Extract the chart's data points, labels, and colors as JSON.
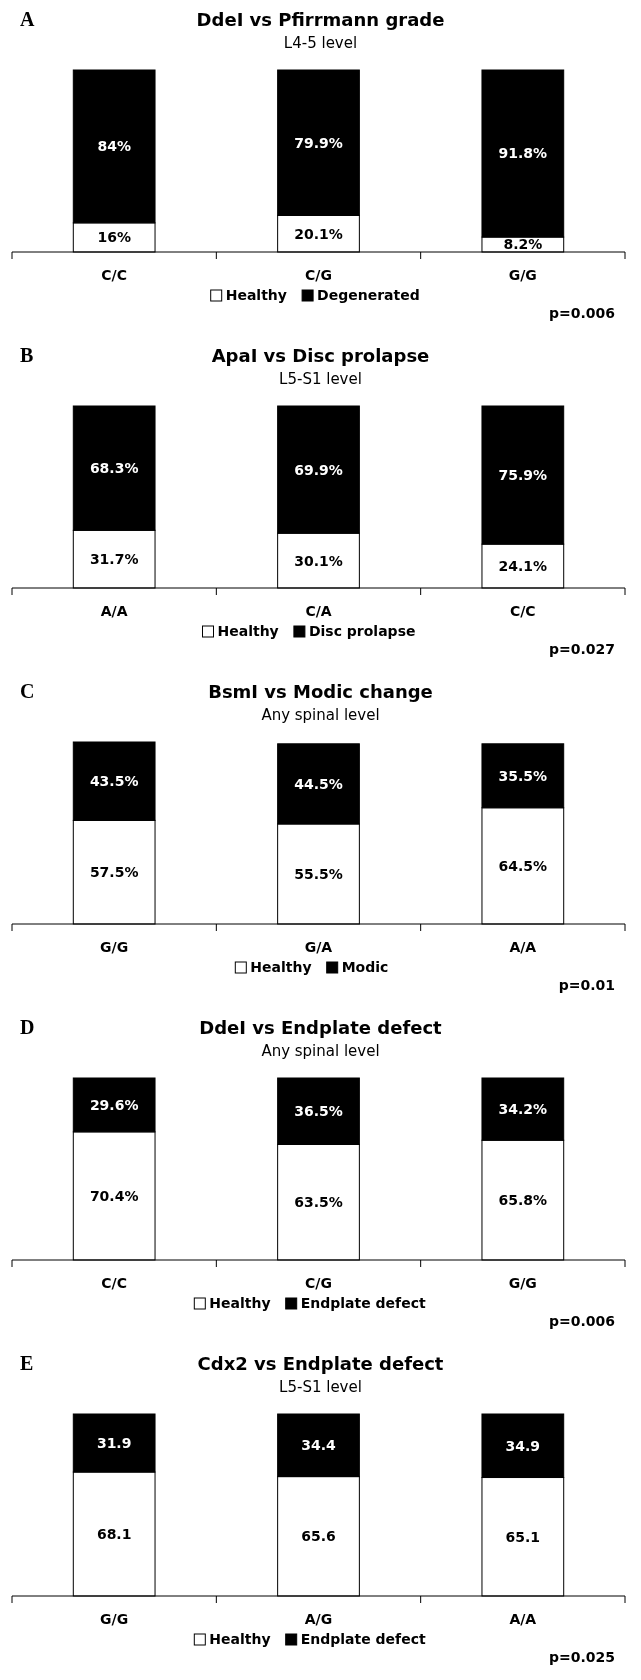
{
  "chart_data": [
    {
      "type": "bar",
      "stacked": true,
      "title": "DdeI vs Pfirrmann grade",
      "subtitle": "L4-5 level",
      "categories": [
        "C/C",
        "C/G",
        "G/G"
      ],
      "ylim": [
        0,
        100
      ],
      "tick_labels": "x",
      "legend": "bottom",
      "annotations": [
        "A",
        "p=0.006"
      ],
      "series": [
        {
          "name": "Healthy",
          "color": "#ffffff",
          "values": [
            16,
            20.1,
            8.2
          ],
          "value_labels": [
            "16%",
            "20.1%",
            "8.2%"
          ]
        },
        {
          "name": "Degenerated",
          "color": "#000000",
          "values": [
            84,
            79.9,
            91.8
          ],
          "value_labels": [
            "84%",
            "79.9%",
            "91.8%"
          ]
        }
      ]
    },
    {
      "type": "bar",
      "stacked": true,
      "title": "ApaI vs Disc prolapse",
      "subtitle": "L5-S1 level",
      "categories": [
        "A/A",
        "C/A",
        "C/C"
      ],
      "ylim": [
        0,
        100
      ],
      "tick_labels": "x",
      "legend": "bottom",
      "annotations": [
        "B",
        "p=0.027"
      ],
      "series": [
        {
          "name": "Healthy",
          "color": "#ffffff",
          "values": [
            31.7,
            30.1,
            24.1
          ],
          "value_labels": [
            "31.7%",
            "30.1%",
            "24.1%"
          ]
        },
        {
          "name": "Disc prolapse",
          "color": "#000000",
          "values": [
            68.3,
            69.9,
            75.9
          ],
          "value_labels": [
            "68.3%",
            "69.9%",
            "75.9%"
          ]
        }
      ]
    },
    {
      "type": "bar",
      "stacked": true,
      "title": "BsmI vs Modic change",
      "subtitle": "Any spinal level",
      "categories": [
        "G/G",
        "G/A",
        "A/A"
      ],
      "ylim": [
        0,
        101
      ],
      "tick_labels": "x",
      "legend": "bottom",
      "annotations": [
        "C",
        "p=0.01"
      ],
      "series": [
        {
          "name": "Healthy",
          "color": "#ffffff",
          "values": [
            57.5,
            55.5,
            64.5
          ],
          "value_labels": [
            "57.5%",
            "55.5%",
            "64.5%"
          ]
        },
        {
          "name": "Modic",
          "color": "#000000",
          "values": [
            43.5,
            44.5,
            35.5
          ],
          "value_labels": [
            "43.5%",
            "44.5%",
            "35.5%"
          ]
        }
      ]
    },
    {
      "type": "bar",
      "stacked": true,
      "title": "DdeI vs Endplate defect",
      "subtitle": "Any spinal level",
      "categories": [
        "C/C",
        "C/G",
        "G/G"
      ],
      "ylim": [
        0,
        100
      ],
      "tick_labels": "x",
      "legend": "bottom",
      "annotations": [
        "D",
        "p=0.006"
      ],
      "series": [
        {
          "name": "Healthy",
          "color": "#ffffff",
          "values": [
            70.4,
            63.5,
            65.8
          ],
          "value_labels": [
            "70.4%",
            "63.5%",
            "65.8%"
          ]
        },
        {
          "name": "Endplate defect",
          "color": "#000000",
          "values": [
            29.6,
            36.5,
            34.2
          ],
          "value_labels": [
            "29.6%",
            "36.5%",
            "34.2%"
          ]
        }
      ]
    },
    {
      "type": "bar",
      "stacked": true,
      "title": "Cdx2 vs Endplate defect",
      "subtitle": "L5-S1 level",
      "categories": [
        "G/G",
        "A/G",
        "A/A"
      ],
      "ylim": [
        0,
        100
      ],
      "tick_labels": "x",
      "legend": "bottom",
      "data_labels": true,
      "annotations": [
        "E",
        "p=0.025"
      ],
      "series": [
        {
          "name": "Healthy",
          "color": "#ffffff",
          "values": [
            68.1,
            65.6,
            65.1
          ]
        },
        {
          "name": "Endplate defect",
          "color": "#000000",
          "values": [
            31.9,
            34.4,
            34.9
          ]
        }
      ]
    }
  ]
}
